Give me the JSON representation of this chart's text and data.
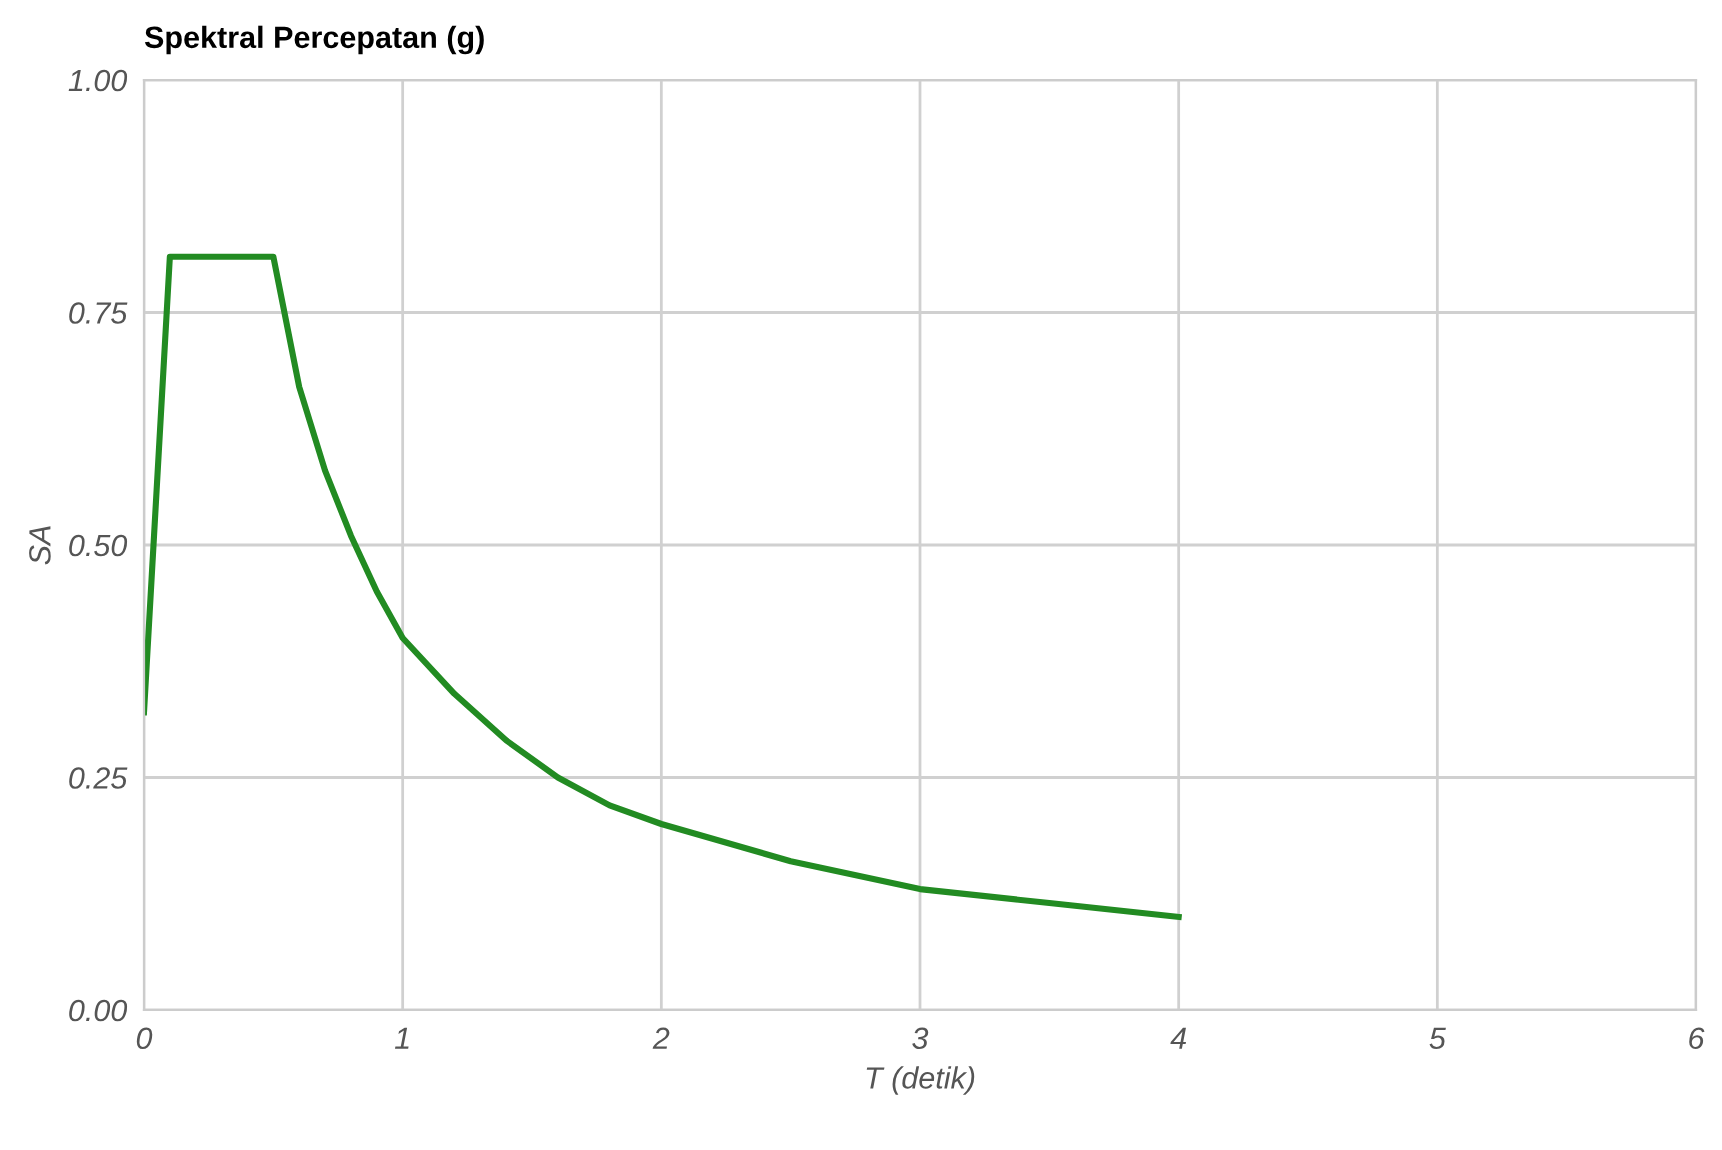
{
  "chart_data": {
    "type": "line",
    "title": "Spektral Percepatan (g)",
    "xlabel": "T (detik)",
    "ylabel": "SA",
    "x": [
      0,
      0.1,
      0.5,
      0.6,
      0.7,
      0.8,
      0.9,
      1.0,
      1.2,
      1.4,
      1.6,
      1.8,
      2.0,
      2.5,
      3.0,
      3.5,
      4.0
    ],
    "series": [
      {
        "color": "#228b22",
        "values": [
          0.32,
          0.81,
          0.81,
          0.67,
          0.58,
          0.51,
          0.45,
          0.4,
          0.34,
          0.29,
          0.25,
          0.22,
          0.2,
          0.16,
          0.13,
          0.115,
          0.1
        ]
      }
    ],
    "xlim": [
      0,
      6
    ],
    "xticks": [
      0,
      1,
      2,
      3,
      4,
      5,
      6
    ],
    "ylim": [
      0,
      1
    ],
    "yticks": [
      {
        "value": 0,
        "label": "0.00"
      },
      {
        "value": 0.25,
        "label": "0.25"
      },
      {
        "value": 0.5,
        "label": "0.50"
      },
      {
        "value": 0.75,
        "label": "0.75"
      },
      {
        "value": 1,
        "label": "1.00"
      }
    ],
    "grid": true,
    "marker": "none",
    "line_style": "solid",
    "legend": false
  }
}
